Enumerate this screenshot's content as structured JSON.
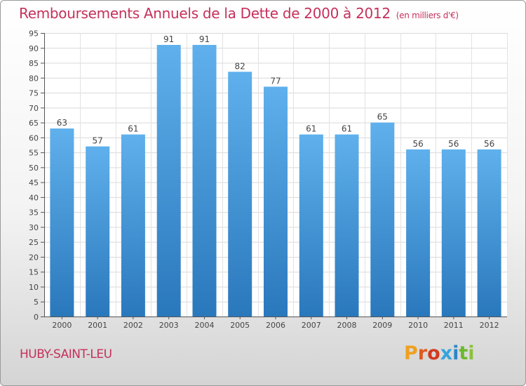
{
  "title": "Remboursements Annuels de la Dette de 2000 à 2012",
  "unit_note": "(en milliers d'€)",
  "city": "HUBY-SAINT-LEU",
  "brand": "Proxiti",
  "colors": {
    "title": "#c6305a",
    "bar_top": "#5fb0ec",
    "bar_bottom": "#2a78bc"
  },
  "chart_data": {
    "type": "bar",
    "title": "Remboursements Annuels de la Dette de 2000 à 2012",
    "ylabel": "",
    "xlabel": "",
    "categories": [
      "2000",
      "2001",
      "2002",
      "2003",
      "2004",
      "2005",
      "2006",
      "2007",
      "2008",
      "2009",
      "2010",
      "2011",
      "2012"
    ],
    "values": [
      63,
      57,
      61,
      91,
      91,
      82,
      77,
      61,
      61,
      65,
      56,
      56,
      56
    ],
    "ylim": [
      0,
      95
    ],
    "yticks": [
      0,
      5,
      10,
      15,
      20,
      25,
      30,
      35,
      40,
      45,
      50,
      55,
      60,
      65,
      70,
      75,
      80,
      85,
      90,
      95
    ],
    "grid": true
  }
}
